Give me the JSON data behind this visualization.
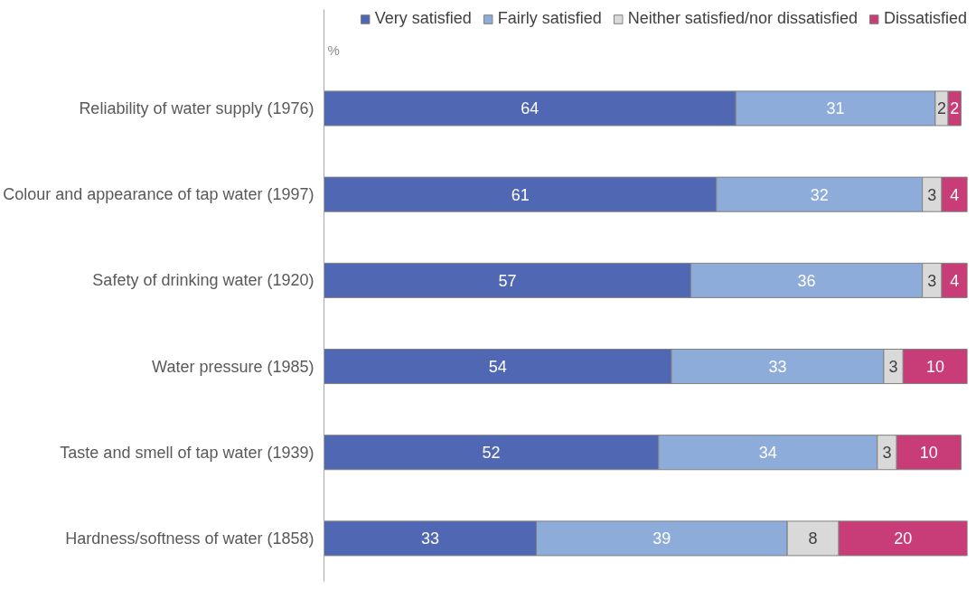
{
  "chart_data": {
    "type": "bar",
    "orientation": "horizontal",
    "stacked": true,
    "data_labels": true,
    "legend": "top",
    "grid": false,
    "xlabel": "%",
    "xlim": [
      0,
      100
    ],
    "categories": [
      "Reliability of water supply (1976)",
      "Colour and appearance of tap water (1997)",
      "Safety of drinking water (1920)",
      "Water pressure (1985)",
      "Taste and smell of tap water (1939)",
      "Hardness/softness of water (1858)"
    ],
    "series": [
      {
        "name": "Very satisfied",
        "color": "#5068b4",
        "values": [
          64,
          61,
          57,
          54,
          52,
          33
        ]
      },
      {
        "name": "Fairly satisfied",
        "color": "#8eacd9",
        "values": [
          31,
          32,
          36,
          33,
          34,
          39
        ]
      },
      {
        "name": "Neither satisfied/nor dissatisfied",
        "color": "#d9d9d9",
        "values": [
          2,
          3,
          3,
          3,
          3,
          8
        ]
      },
      {
        "name": "Dissatisfied",
        "color": "#c83c78",
        "values": [
          2,
          4,
          4,
          10,
          10,
          20
        ]
      }
    ]
  }
}
